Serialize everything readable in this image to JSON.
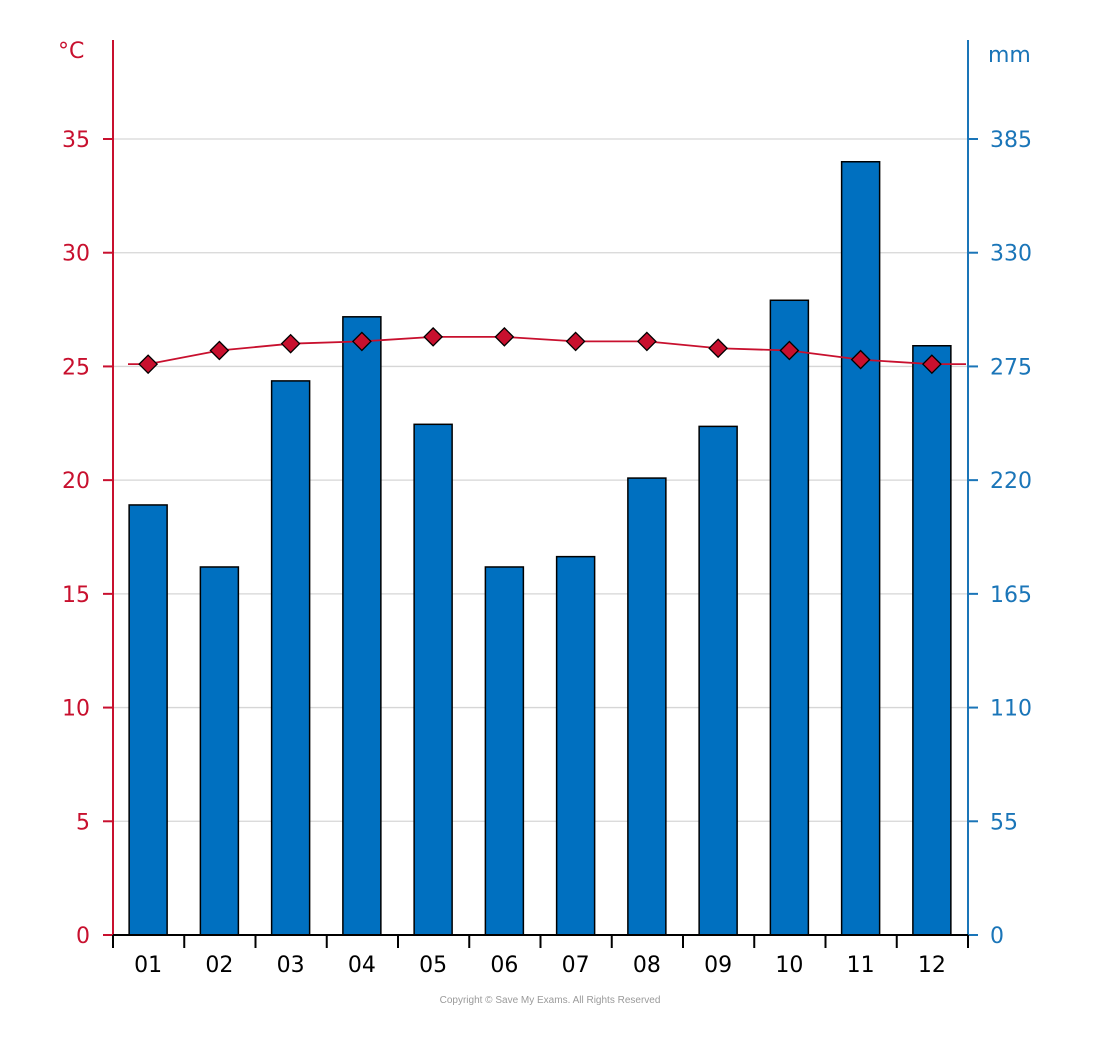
{
  "chart_data": {
    "type": "bar",
    "categories": [
      "01",
      "02",
      "03",
      "04",
      "05",
      "06",
      "07",
      "08",
      "09",
      "10",
      "11",
      "12"
    ],
    "left_axis": {
      "unit": "°C",
      "ticks": [
        0,
        5,
        10,
        15,
        20,
        25,
        30,
        35
      ],
      "range": [
        0,
        39
      ],
      "color": "#c8102e"
    },
    "right_axis": {
      "unit": "mm",
      "ticks": [
        0,
        55,
        110,
        165,
        220,
        275,
        330,
        385
      ],
      "range": [
        0,
        429
      ],
      "color": "#1a75b8"
    },
    "series": [
      {
        "type": "bar",
        "axis": "right",
        "color": "#0070c0",
        "values": [
          208,
          178,
          268,
          299,
          247,
          178,
          183,
          221,
          246,
          307,
          374,
          285
        ]
      },
      {
        "type": "line",
        "axis": "left",
        "color": "#c8102e",
        "marker": "diamond",
        "values": [
          25.1,
          25.7,
          26.0,
          26.1,
          26.3,
          26.3,
          26.1,
          26.1,
          25.8,
          25.7,
          25.3,
          25.1
        ]
      }
    ],
    "grid": true
  },
  "footer": {
    "copyright": "Copyright © Save My Exams. All Rights Reserved"
  }
}
